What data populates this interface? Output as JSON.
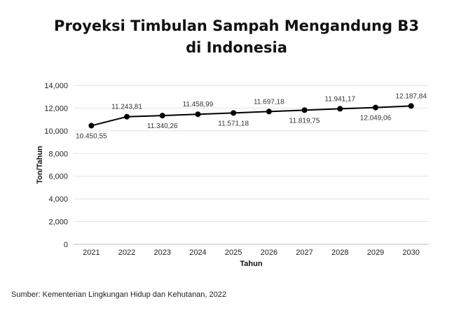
{
  "chart_data": {
    "type": "line",
    "title_lines": [
      "Proyeksi Timbulan Sampah Mengandung B3",
      "di Indonesia"
    ],
    "xlabel": "Tahun",
    "ylabel": "Ton/Tahun",
    "categories": [
      "2021",
      "2022",
      "2023",
      "2024",
      "2025",
      "2026",
      "2027",
      "2028",
      "2029",
      "2030"
    ],
    "values": [
      10450.55,
      11243.81,
      11340.26,
      11458.99,
      11571.18,
      11697.18,
      11819.75,
      11941.17,
      12049.06,
      12187.84
    ],
    "data_labels": [
      "10.450,55",
      "11.243,81",
      "11.340,26",
      "11.458,99",
      "11.571,18",
      "11.697,18",
      "11.819,75",
      "11.941,17",
      "12.049,06",
      "12.187,84"
    ],
    "ylim": [
      0,
      14000
    ],
    "yticks": [
      0,
      2000,
      4000,
      6000,
      8000,
      10000,
      12000,
      14000
    ],
    "ytick_labels": [
      "0",
      "2,000",
      "4,000",
      "6,000",
      "8,000",
      "10,000",
      "12,000",
      "14,000"
    ],
    "grid": true,
    "legend": "none",
    "line_color": "#000000"
  },
  "source": "Sumber: Kementerian Lingkungan Hidup dan Kehutanan, 2022"
}
